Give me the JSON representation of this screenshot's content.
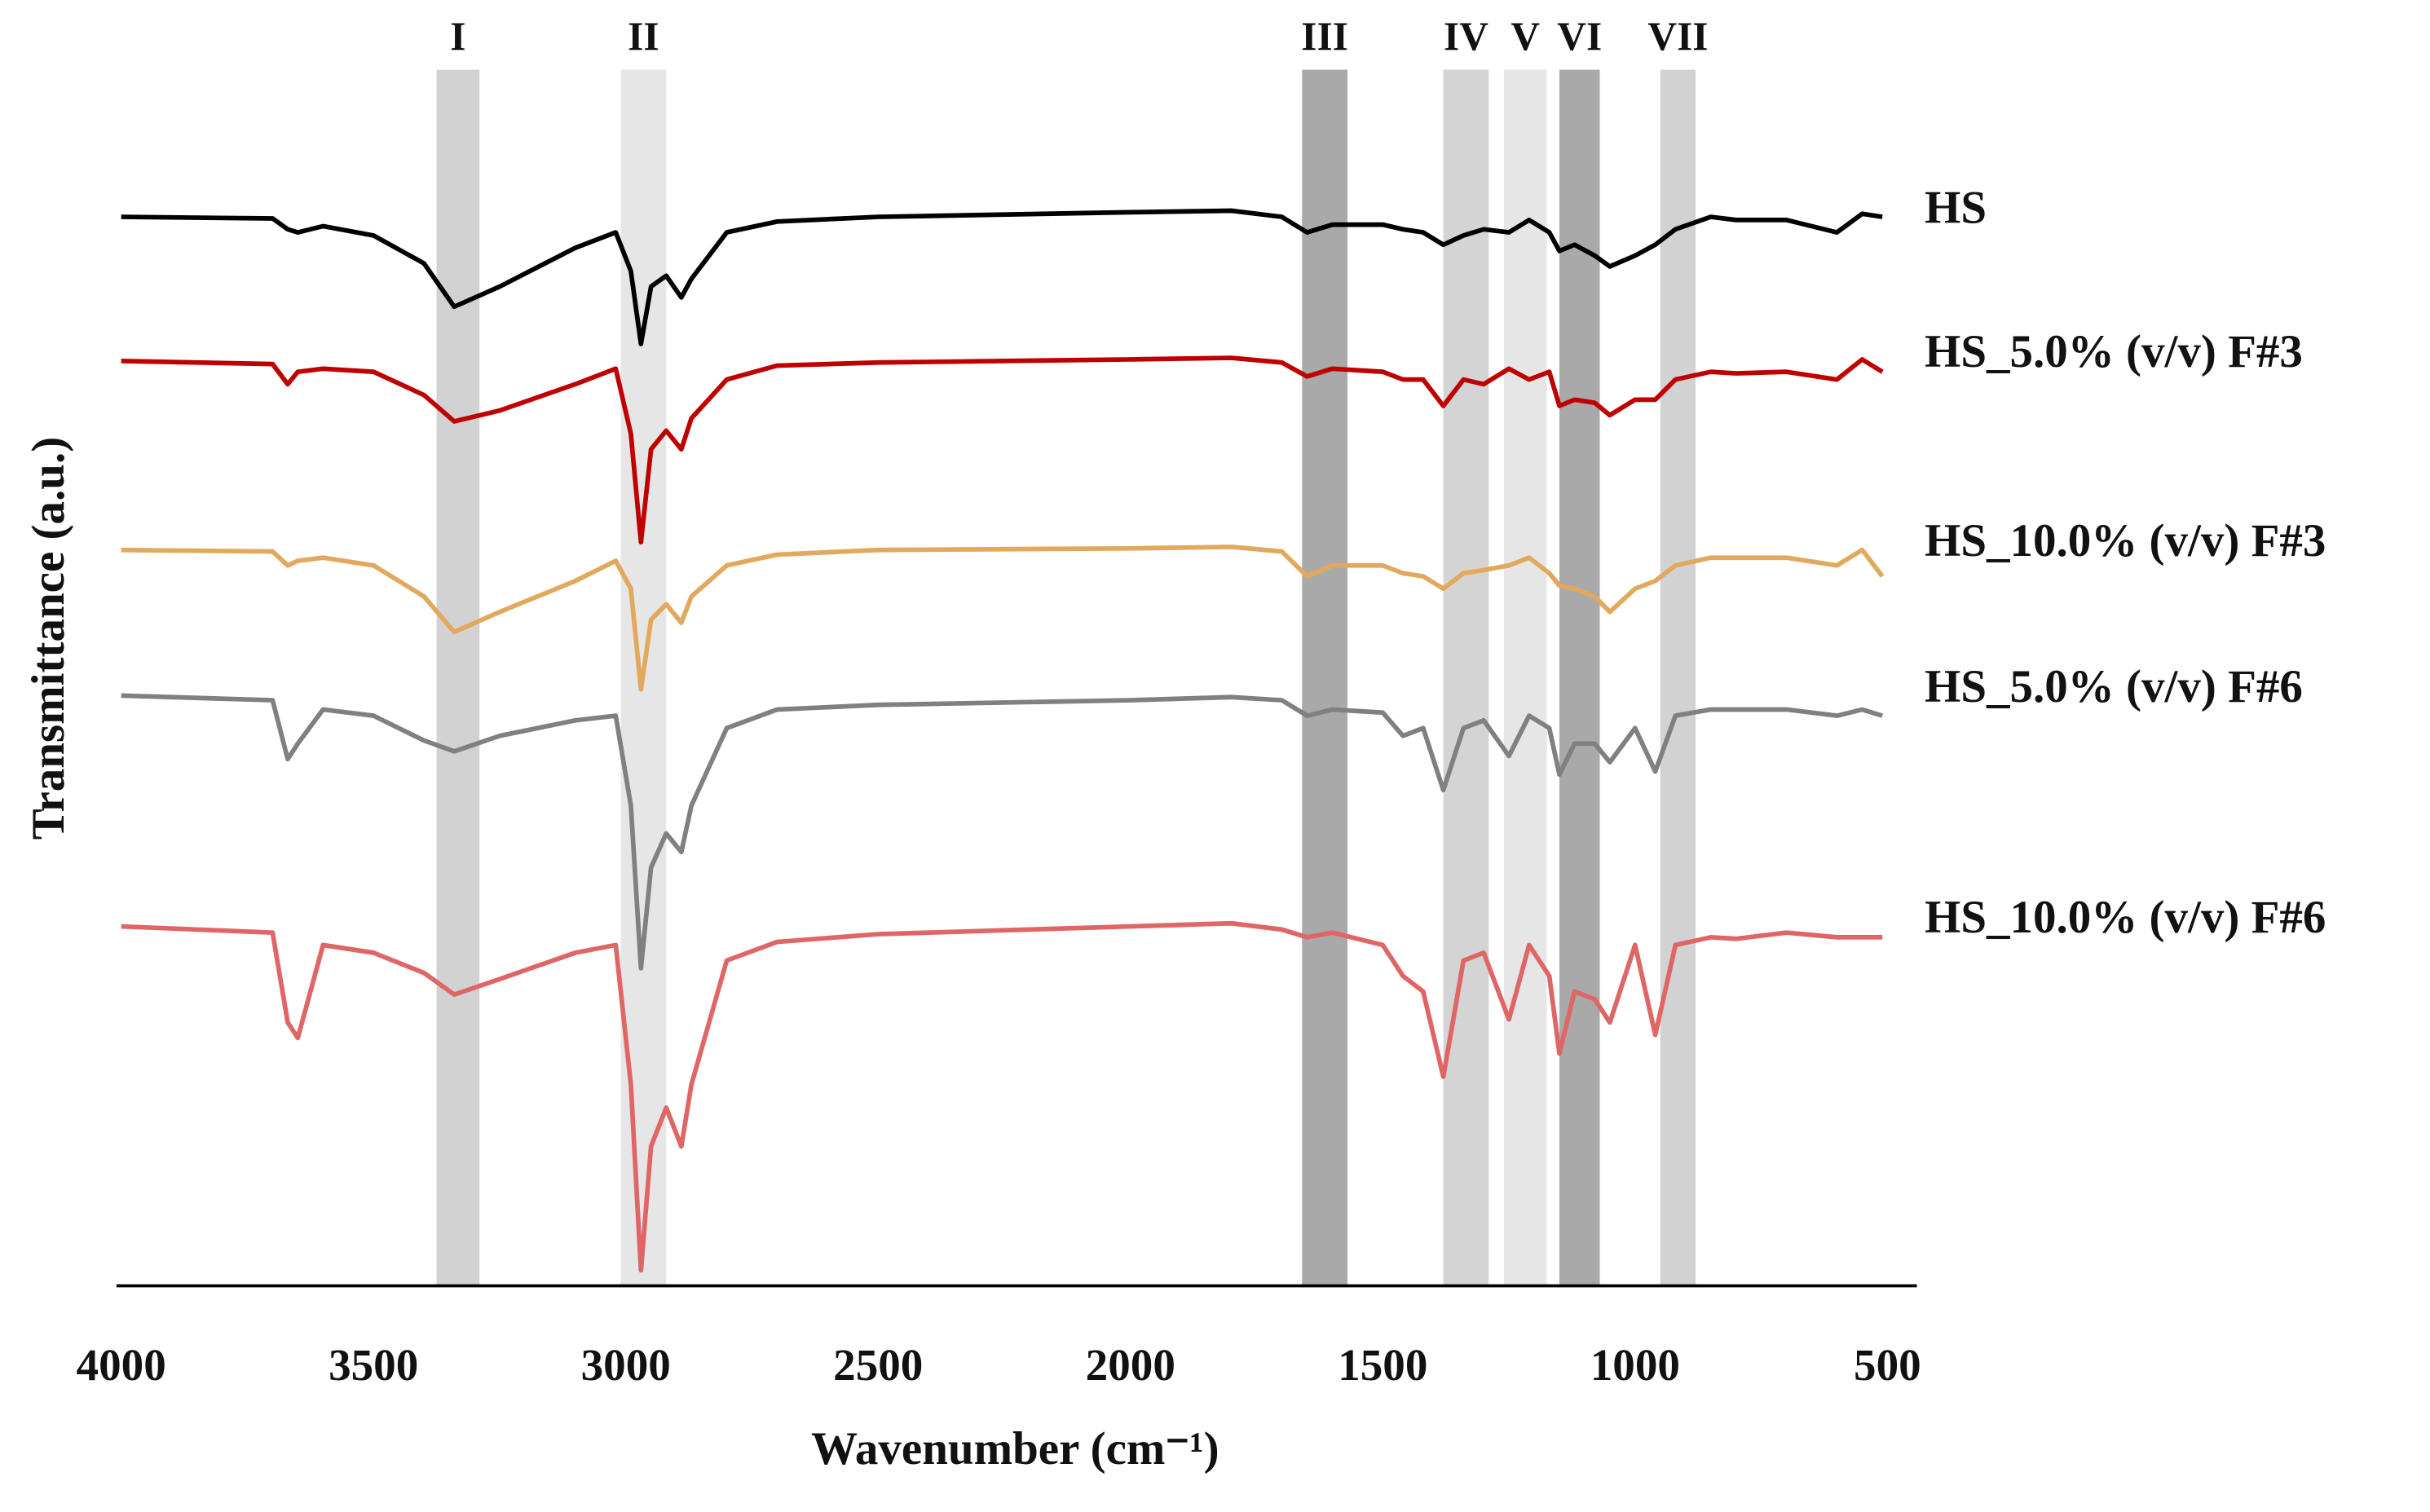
{
  "chart_data": {
    "type": "line",
    "x_label": "Wavenumber (cm⁻¹)",
    "y_label": "Transmittance (a.u.)",
    "xlim": [
      4000,
      500
    ],
    "xticks": [
      4000,
      3500,
      3000,
      2500,
      2000,
      1500,
      1000,
      500
    ],
    "ylim": [
      0,
      790
    ],
    "grid": false,
    "bands": [
      {
        "label": "I",
        "range": [
          3375,
          3290
        ],
        "color": "#d2d2d2"
      },
      {
        "label": "II",
        "range": [
          3010,
          2920
        ],
        "color": "#e6e6e6"
      },
      {
        "label": "III",
        "range": [
          1660,
          1570
        ],
        "color": "#a9a9a9"
      },
      {
        "label": "IV",
        "range": [
          1380,
          1290
        ],
        "color": "#d4d4d4"
      },
      {
        "label": "V",
        "range": [
          1260,
          1175
        ],
        "color": "#e6e6e6"
      },
      {
        "label": "VI",
        "range": [
          1150,
          1070
        ],
        "color": "#a9a9a9"
      },
      {
        "label": "VII",
        "range": [
          950,
          880
        ],
        "color": "#d2d2d2"
      }
    ],
    "x": [
      4000,
      3700,
      3670,
      3650,
      3600,
      3500,
      3400,
      3340,
      3250,
      3100,
      3020,
      2990,
      2970,
      2950,
      2920,
      2890,
      2870,
      2800,
      2700,
      2500,
      2000,
      1800,
      1700,
      1650,
      1600,
      1500,
      1460,
      1420,
      1380,
      1340,
      1300,
      1250,
      1210,
      1170,
      1150,
      1120,
      1080,
      1050,
      1000,
      960,
      920,
      850,
      800,
      700,
      600,
      550,
      510
    ],
    "series": [
      {
        "name": "HS",
        "color": "#000000",
        "values": [
          690,
          689,
          682,
          680,
          684,
          678,
          660,
          632,
          645,
          670,
          680,
          655,
          608,
          645,
          652,
          638,
          650,
          680,
          687,
          690,
          693,
          694,
          690,
          680,
          685,
          685,
          682,
          680,
          672,
          678,
          682,
          680,
          688,
          680,
          668,
          672,
          665,
          658,
          665,
          672,
          682,
          690,
          688,
          688,
          680,
          692,
          690
        ]
      },
      {
        "name": "HS_5.0% (v/v) F#3",
        "color": "#c00000",
        "values": [
          597,
          595,
          582,
          590,
          592,
          590,
          575,
          558,
          565,
          582,
          592,
          550,
          480,
          540,
          552,
          540,
          560,
          585,
          594,
          596,
          598,
          599,
          596,
          587,
          592,
          590,
          585,
          585,
          568,
          585,
          582,
          592,
          585,
          590,
          568,
          572,
          570,
          562,
          572,
          572,
          585,
          590,
          589,
          590,
          585,
          598,
          590
        ]
      },
      {
        "name": "HS_10.0% (v/v) F#3",
        "color": "#e2a95e",
        "values": [
          475,
          474,
          465,
          468,
          470,
          465,
          445,
          422,
          435,
          455,
          468,
          450,
          385,
          430,
          440,
          428,
          445,
          465,
          472,
          475,
          476,
          477,
          474,
          458,
          465,
          465,
          460,
          458,
          450,
          460,
          462,
          465,
          470,
          460,
          452,
          450,
          445,
          435,
          450,
          455,
          465,
          470,
          470,
          470,
          465,
          475,
          458
        ]
      },
      {
        "name": "HS_5.0% (v/v) F#6",
        "color": "#808080",
        "values": [
          381,
          378,
          340,
          350,
          372,
          368,
          352,
          345,
          355,
          365,
          368,
          310,
          205,
          270,
          292,
          280,
          310,
          360,
          372,
          375,
          378,
          380,
          378,
          368,
          372,
          370,
          355,
          360,
          320,
          360,
          365,
          342,
          368,
          360,
          330,
          350,
          350,
          338,
          360,
          332,
          368,
          372,
          372,
          372,
          368,
          372,
          368
        ]
      },
      {
        "name": "HS_10.0% (v/v) F#6",
        "color": "#e06666",
        "values": [
          232,
          228,
          170,
          160,
          220,
          215,
          202,
          188,
          198,
          215,
          220,
          130,
          10,
          90,
          115,
          90,
          130,
          210,
          222,
          227,
          232,
          234,
          230,
          225,
          228,
          220,
          200,
          190,
          135,
          210,
          215,
          172,
          220,
          200,
          150,
          190,
          185,
          170,
          220,
          162,
          220,
          225,
          224,
          228,
          225,
          225,
          225
        ]
      }
    ]
  }
}
